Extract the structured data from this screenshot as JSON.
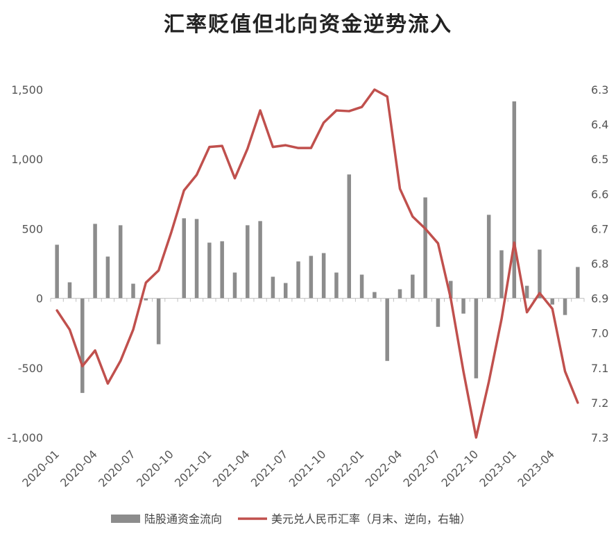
{
  "chart_data": {
    "type": "bar+line",
    "title": "汇率贬值但北向资金逆势流入",
    "x": [
      "2020-01",
      "2020-02",
      "2020-03",
      "2020-04",
      "2020-05",
      "2020-06",
      "2020-07",
      "2020-08",
      "2020-09",
      "2020-10",
      "2020-11",
      "2020-12",
      "2021-01",
      "2021-02",
      "2021-03",
      "2021-04",
      "2021-05",
      "2021-06",
      "2021-07",
      "2021-08",
      "2021-09",
      "2021-10",
      "2021-11",
      "2021-12",
      "2022-01",
      "2022-02",
      "2022-03",
      "2022-04",
      "2022-05",
      "2022-06",
      "2022-07",
      "2022-08",
      "2022-09",
      "2022-10",
      "2022-11",
      "2022-12",
      "2023-01",
      "2023-02",
      "2023-03",
      "2023-04",
      "2023-05",
      "2023-06"
    ],
    "x_tick_labels": [
      "2020-01",
      "2020-04",
      "2020-07",
      "2020-10",
      "2021-01",
      "2021-04",
      "2021-07",
      "2021-10",
      "2022-01",
      "2022-04",
      "2022-07",
      "2022-10",
      "2023-01",
      "2023-04"
    ],
    "series": [
      {
        "name": "陆股通资金流向",
        "type": "bar",
        "axis": "left",
        "color": "#8c8c8c",
        "values": [
          385,
          115,
          -680,
          535,
          300,
          525,
          105,
          -15,
          -330,
          null,
          575,
          570,
          400,
          410,
          185,
          525,
          555,
          155,
          110,
          265,
          305,
          325,
          185,
          890,
          170,
          45,
          -450,
          65,
          170,
          725,
          -205,
          125,
          -110,
          -575,
          600,
          345,
          1415,
          90,
          350,
          -45,
          -120,
          225
        ]
      },
      {
        "name": "美元兑人民币汇率（月末、逆向，右轴）",
        "type": "line",
        "axis": "right",
        "inverted": true,
        "color": "#c0504d",
        "values": [
          6.935,
          6.99,
          7.095,
          7.05,
          7.145,
          7.08,
          6.99,
          6.855,
          6.82,
          6.71,
          6.59,
          6.545,
          6.465,
          6.462,
          6.555,
          6.47,
          6.36,
          6.465,
          6.46,
          6.468,
          6.468,
          6.395,
          6.36,
          6.362,
          6.35,
          6.3,
          6.32,
          6.585,
          6.665,
          6.7,
          6.742,
          6.9,
          7.11,
          7.3,
          7.14,
          6.96,
          6.74,
          6.94,
          6.885,
          6.93,
          7.11,
          7.2
        ]
      }
    ],
    "y_left": {
      "min": -1000,
      "max": 1500,
      "ticks": [
        -1000,
        -500,
        0,
        500,
        1000,
        1500
      ],
      "tick_labels": [
        "-1,000",
        "-500",
        "0",
        "500",
        "1,000",
        "1,500"
      ]
    },
    "y_right": {
      "min": 6.3,
      "max": 7.3,
      "inverted": true,
      "ticks": [
        6.3,
        6.4,
        6.5,
        6.6,
        6.7,
        6.8,
        6.9,
        7.0,
        7.1,
        7.2,
        7.3
      ],
      "tick_labels": [
        "6.3",
        "6.4",
        "6.5",
        "6.6",
        "6.7",
        "6.8",
        "6.9",
        "7.0",
        "7.1",
        "7.2",
        "7.3"
      ]
    },
    "legend": {
      "position": "bottom",
      "items": [
        "陆股通资金流向",
        "美元兑人民币汇率（月末、逆向，右轴）"
      ]
    },
    "grid": false
  }
}
